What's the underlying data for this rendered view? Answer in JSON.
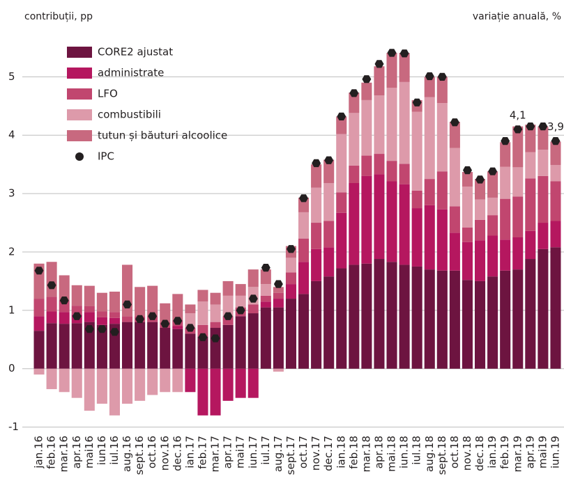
{
  "chart_data": {
    "type": "stacked_bar",
    "y_label": "contribuții, pp",
    "y2_label": "variație anuală, %",
    "categories": [
      "jan.16",
      "feb.16",
      "mar.16",
      "apr.16",
      "mai16",
      "iun16",
      "iul.16",
      "aug.16",
      "sept.16",
      "oct.16",
      "nov.16",
      "dec.16",
      "ian.17",
      "feb.17",
      "mar.17",
      "apr.17",
      "mai17",
      "iun.17",
      "iul.17",
      "aug.17",
      "sept.17",
      "oct.17",
      "nov.17",
      "dec.17",
      "ian.18",
      "feb.18",
      "mar.18",
      "apr.18",
      "mai.18",
      "iun.18",
      "iul.18",
      "aug.18",
      "sept.18",
      "oct.18",
      "nov.18",
      "dec.18",
      "ian.19",
      "feb.19",
      "mar.19",
      "apr.19",
      "mai19",
      "iun.19"
    ],
    "series": [
      {
        "name": "CORE2 ajustat",
        "color": "#6d1440",
        "values": [
          0.65,
          0.78,
          0.77,
          0.78,
          0.8,
          0.75,
          0.77,
          0.8,
          0.8,
          0.8,
          0.7,
          0.68,
          0.6,
          0.55,
          0.7,
          0.75,
          0.9,
          0.95,
          1.05,
          1.05,
          1.2,
          1.28,
          1.5,
          1.58,
          1.72,
          1.78,
          1.8,
          1.88,
          1.83,
          1.78,
          1.75,
          1.7,
          1.68,
          1.68,
          1.52,
          1.5,
          1.58,
          1.68,
          1.7,
          1.88,
          2.05,
          2.08
        ]
      },
      {
        "name": "administrate",
        "color": "#b5175f",
        "values": [
          0.25,
          0.2,
          0.2,
          0.15,
          0.17,
          0.13,
          0.1,
          0.0,
          0.0,
          0.0,
          0.0,
          0.05,
          -0.4,
          -0.8,
          -0.8,
          -0.55,
          -0.5,
          -0.5,
          0.1,
          0.15,
          0.25,
          0.55,
          0.55,
          0.5,
          0.95,
          1.4,
          1.5,
          1.45,
          1.38,
          1.38,
          1.0,
          1.1,
          1.05,
          0.65,
          0.65,
          0.7,
          0.7,
          0.53,
          0.55,
          0.48,
          0.45,
          0.45
        ]
      },
      {
        "name": "LFO",
        "color": "#c1466f",
        "values": [
          0.3,
          0.25,
          0.2,
          0.15,
          0.1,
          0.1,
          0.1,
          0.1,
          0.1,
          0.1,
          0.1,
          0.1,
          0.1,
          0.2,
          0.1,
          0.15,
          0.15,
          0.15,
          0.1,
          0.1,
          0.2,
          0.4,
          0.45,
          0.45,
          0.35,
          0.3,
          0.35,
          0.35,
          0.35,
          0.35,
          0.3,
          0.45,
          0.65,
          0.45,
          0.25,
          0.35,
          0.35,
          0.7,
          0.7,
          0.9,
          0.8,
          0.68
        ]
      },
      {
        "name": "combustibili",
        "color": "#dd9aaa",
        "values": [
          -0.1,
          -0.35,
          -0.4,
          -0.5,
          -0.72,
          -0.6,
          -0.8,
          -0.6,
          -0.55,
          -0.45,
          -0.4,
          -0.4,
          0.25,
          0.4,
          0.3,
          0.35,
          0.2,
          0.3,
          0.2,
          -0.05,
          0.25,
          0.45,
          0.6,
          0.65,
          1.0,
          0.9,
          0.95,
          1.0,
          1.25,
          1.4,
          1.35,
          1.4,
          1.17,
          1.0,
          0.7,
          0.35,
          0.3,
          0.55,
          0.5,
          0.45,
          0.45,
          0.28
        ]
      },
      {
        "name": "tutun și băuturi alcoolice",
        "color": "#c8697f",
        "values": [
          0.6,
          0.6,
          0.43,
          0.35,
          0.35,
          0.32,
          0.35,
          0.88,
          0.5,
          0.52,
          0.32,
          0.45,
          0.15,
          0.2,
          0.2,
          0.25,
          0.2,
          0.3,
          0.25,
          0.1,
          0.2,
          0.25,
          0.4,
          0.4,
          0.3,
          0.35,
          0.3,
          0.5,
          0.6,
          0.5,
          0.2,
          0.35,
          0.45,
          0.45,
          0.25,
          0.35,
          0.45,
          0.42,
          0.7,
          0.47,
          0.4,
          0.4
        ]
      }
    ],
    "line_series": {
      "name": "IPC",
      "color": "#231f20",
      "values": [
        1.68,
        1.43,
        1.17,
        0.9,
        0.68,
        0.68,
        0.63,
        1.1,
        0.85,
        0.9,
        0.77,
        0.82,
        0.7,
        0.54,
        0.52,
        0.9,
        1.0,
        1.2,
        1.73,
        1.45,
        2.05,
        2.92,
        3.52,
        3.57,
        4.32,
        4.72,
        4.96,
        5.22,
        5.41,
        5.4,
        4.56,
        5.01,
        5.0,
        4.22,
        3.4,
        3.24,
        3.38,
        3.9,
        4.1,
        4.15,
        4.15,
        3.9
      ],
      "value_labels": [
        null,
        null,
        null,
        null,
        null,
        null,
        null,
        null,
        null,
        null,
        null,
        null,
        null,
        null,
        null,
        null,
        null,
        null,
        null,
        null,
        null,
        null,
        null,
        null,
        null,
        null,
        null,
        null,
        null,
        null,
        null,
        null,
        null,
        null,
        null,
        null,
        null,
        null,
        "4,1",
        null,
        null,
        "3,9"
      ]
    },
    "ylim": [
      -1.1,
      5.6
    ],
    "yticks": [
      -1,
      0,
      1,
      2,
      3,
      4,
      5
    ],
    "grid": true,
    "legend": "top-left"
  }
}
